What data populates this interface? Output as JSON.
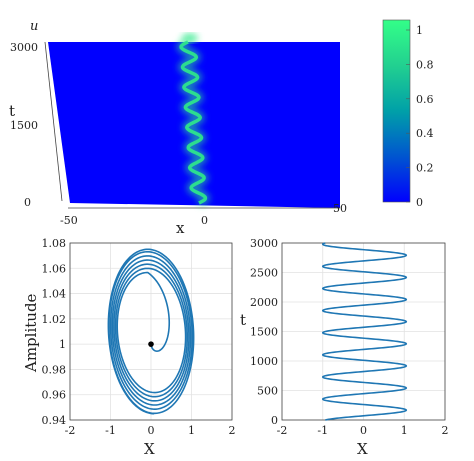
{
  "colors": {
    "line": "#1f77b4",
    "surface_low": "#0000ff",
    "surface_high": "#2fe98a",
    "colorbar_stops": [
      "#0000ff",
      "#0055d0",
      "#00a0a8",
      "#22d090",
      "#33ff88"
    ]
  },
  "chart_data": [
    {
      "type": "heatmap",
      "title": "",
      "xlabel": "x",
      "ylabel": "t",
      "zlabel": "u",
      "xlim": [
        -50,
        50
      ],
      "ylim": [
        0,
        3000
      ],
      "x_ticks": [
        "-50",
        "0",
        "50"
      ],
      "y_ticks": [
        "0",
        "1500",
        "3000"
      ],
      "colorbar": {
        "range": [
          0,
          1
        ],
        "ticks": [
          "0",
          "0.2",
          "0.4",
          "0.6",
          "0.8",
          "1"
        ]
      },
      "peak_amplitude": 1.0,
      "background_amplitude": 0.0,
      "oscillation": {
        "x_amplitude": 1.0,
        "periods": 8
      }
    },
    {
      "type": "line",
      "title": "",
      "xlabel": "X",
      "ylabel": "Amplitude",
      "xlim": [
        -2,
        2
      ],
      "ylim": [
        0.94,
        1.08
      ],
      "x_ticks": [
        "-2",
        "-1",
        "0",
        "1",
        "2"
      ],
      "y_ticks": [
        "0.94",
        "0.96",
        "0.98",
        "1",
        "1.02",
        "1.04",
        "1.06",
        "1.08"
      ],
      "grid": true,
      "start_point": {
        "x": 0.0,
        "y": 1.0
      },
      "spiral": {
        "center_x": 0.0,
        "center_y": 1.01,
        "x_amplitude": [
          0.8,
          1.05
        ],
        "y_amplitude": [
          0.045,
          0.065
        ],
        "turns": 7
      }
    },
    {
      "type": "line",
      "title": "",
      "xlabel": "X",
      "ylabel": "t",
      "xlim": [
        -2,
        2
      ],
      "ylim": [
        0,
        3000
      ],
      "x_ticks": [
        "-2",
        "-1",
        "0",
        "1",
        "2"
      ],
      "y_ticks": [
        "0",
        "500",
        "1000",
        "1500",
        "2000",
        "2500",
        "3000"
      ],
      "grid": true,
      "oscillation": {
        "x_min": -1.0,
        "x_max": 1.05,
        "periods": 8,
        "t_end": 3000
      }
    }
  ]
}
